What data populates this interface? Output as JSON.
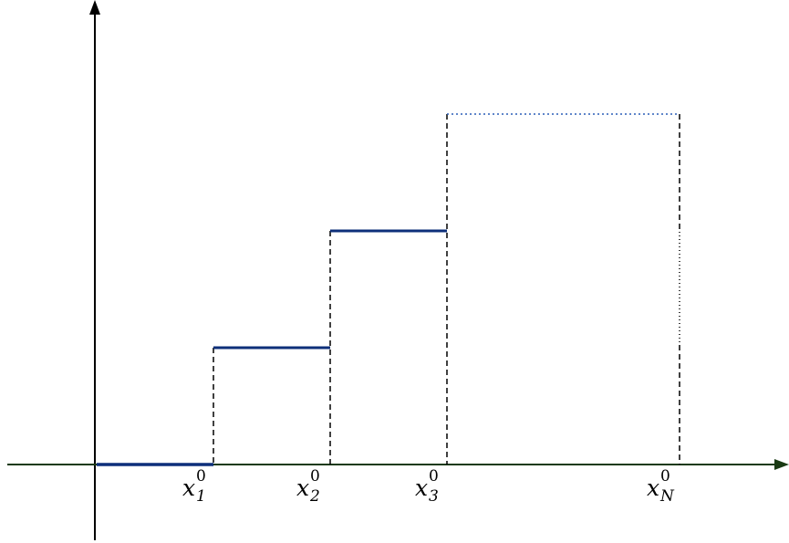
{
  "diagram": {
    "labels": [
      {
        "base": "x",
        "sup": "0",
        "sub": "1"
      },
      {
        "base": "x",
        "sup": "0",
        "sub": "2"
      },
      {
        "base": "x",
        "sup": "0",
        "sub": "3"
      },
      {
        "base": "x",
        "sup": "0",
        "sub": "N"
      }
    ],
    "colors": {
      "axis_y": "#000000",
      "axis_x": "#1a3a14",
      "step": "#0d2f7a",
      "guide": "#000000",
      "dotted": "#2b5fb8"
    }
  }
}
